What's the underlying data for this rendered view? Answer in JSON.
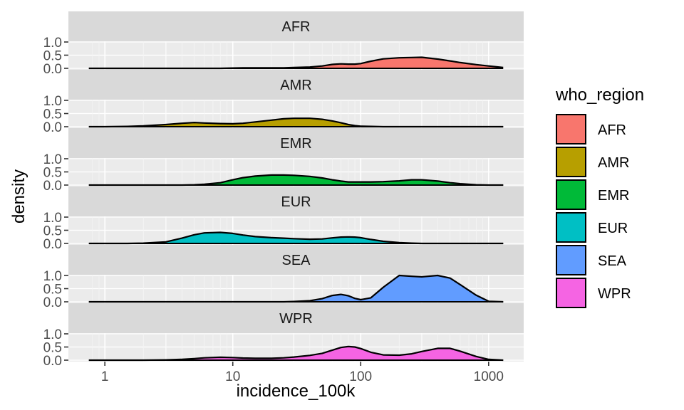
{
  "chart_data": {
    "type": "area",
    "subtype": "faceted-density",
    "xlabel": "incidence_100k",
    "ylabel": "density",
    "x_scale": "log10",
    "xlim": [
      0.75,
      1300
    ],
    "x_ticks": [
      1,
      10,
      100,
      1000
    ],
    "x_tick_labels": [
      "1",
      "10",
      "100",
      "1000"
    ],
    "y_ticks": [
      0.0,
      0.5,
      1.0
    ],
    "y_tick_labels": [
      "0.0",
      "0.5",
      "1.0"
    ],
    "ylim": [
      0,
      1
    ],
    "grid": true,
    "legend": {
      "title": "who_region",
      "position": "right"
    },
    "x": [
      0.75,
      1,
      1.5,
      2,
      3,
      4,
      5,
      6,
      8,
      10,
      12,
      15,
      20,
      25,
      30,
      40,
      50,
      60,
      70,
      80,
      90,
      100,
      120,
      150,
      200,
      250,
      300,
      400,
      500,
      600,
      800,
      1000,
      1300
    ],
    "series": [
      {
        "name": "AFR",
        "color": "#F8766D",
        "values": [
          0,
          0,
          0,
          0,
          0,
          0,
          0,
          0,
          0,
          0.01,
          0.02,
          0.02,
          0.02,
          0.02,
          0.03,
          0.05,
          0.09,
          0.15,
          0.17,
          0.16,
          0.16,
          0.18,
          0.27,
          0.36,
          0.4,
          0.41,
          0.42,
          0.35,
          0.28,
          0.22,
          0.14,
          0.09,
          0.03
        ]
      },
      {
        "name": "AMR",
        "color": "#B79F00",
        "values": [
          0,
          0,
          0.01,
          0.03,
          0.08,
          0.13,
          0.16,
          0.14,
          0.12,
          0.11,
          0.13,
          0.18,
          0.25,
          0.3,
          0.32,
          0.32,
          0.28,
          0.22,
          0.15,
          0.08,
          0.04,
          0.02,
          0.01,
          0,
          0,
          0,
          0,
          0,
          0,
          0,
          0,
          0,
          0
        ]
      },
      {
        "name": "EMR",
        "color": "#00BA38",
        "values": [
          0,
          0,
          0,
          0,
          0,
          0,
          0.01,
          0.03,
          0.09,
          0.2,
          0.28,
          0.34,
          0.38,
          0.38,
          0.37,
          0.33,
          0.27,
          0.2,
          0.15,
          0.12,
          0.12,
          0.12,
          0.12,
          0.13,
          0.16,
          0.2,
          0.2,
          0.15,
          0.09,
          0.05,
          0.01,
          0,
          0
        ]
      },
      {
        "name": "EUR",
        "color": "#00BFC4",
        "values": [
          0,
          0,
          0,
          0.01,
          0.06,
          0.2,
          0.33,
          0.4,
          0.42,
          0.38,
          0.32,
          0.26,
          0.22,
          0.2,
          0.18,
          0.16,
          0.17,
          0.21,
          0.24,
          0.25,
          0.24,
          0.22,
          0.15,
          0.08,
          0.03,
          0.01,
          0,
          0,
          0,
          0,
          0,
          0,
          0
        ]
      },
      {
        "name": "SEA",
        "color": "#619CFF",
        "values": [
          0,
          0,
          0,
          0,
          0,
          0,
          0,
          0,
          0,
          0,
          0,
          0,
          0,
          0,
          0.01,
          0.04,
          0.12,
          0.24,
          0.28,
          0.23,
          0.13,
          0.08,
          0.15,
          0.55,
          1.0,
          0.97,
          0.95,
          1.0,
          0.9,
          0.65,
          0.25,
          0.02,
          0
        ]
      },
      {
        "name": "WPR",
        "color": "#F564E3",
        "values": [
          0,
          0,
          0,
          0,
          0.01,
          0.03,
          0.06,
          0.09,
          0.11,
          0.1,
          0.08,
          0.07,
          0.07,
          0.09,
          0.12,
          0.18,
          0.26,
          0.38,
          0.48,
          0.52,
          0.5,
          0.44,
          0.3,
          0.2,
          0.19,
          0.24,
          0.33,
          0.45,
          0.45,
          0.34,
          0.14,
          0.03,
          0
        ]
      }
    ]
  }
}
